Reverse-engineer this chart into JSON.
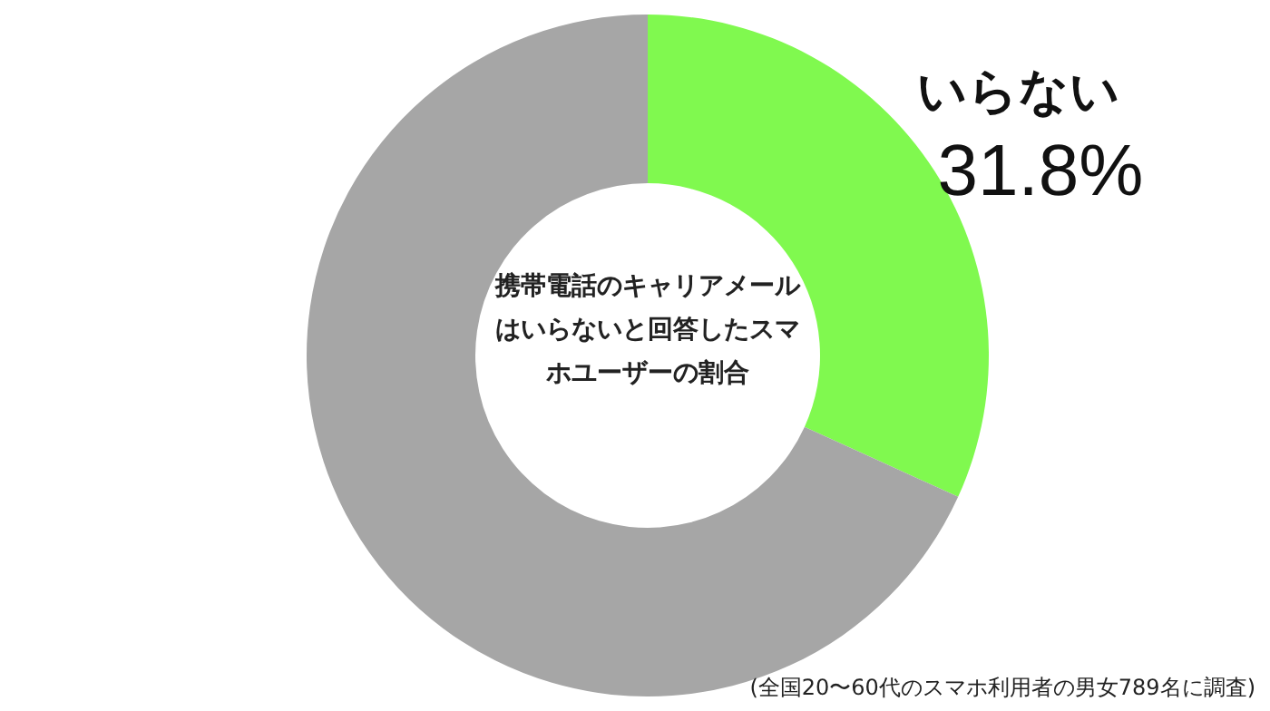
{
  "chart_data": {
    "type": "donut",
    "title": "携帯電話のキャリアメールはいらないと回答したスマホユーザーの割合",
    "categories": [
      "いらない",
      null
    ],
    "values": [
      31.8,
      68.2
    ],
    "colors": [
      "#80f94f",
      "#a6a6a6"
    ],
    "value_labels": [
      "31.8%",
      null
    ],
    "annotations": [
      "(全国20〜60代のスマホ利用者の男女789名に調査)"
    ]
  }
}
